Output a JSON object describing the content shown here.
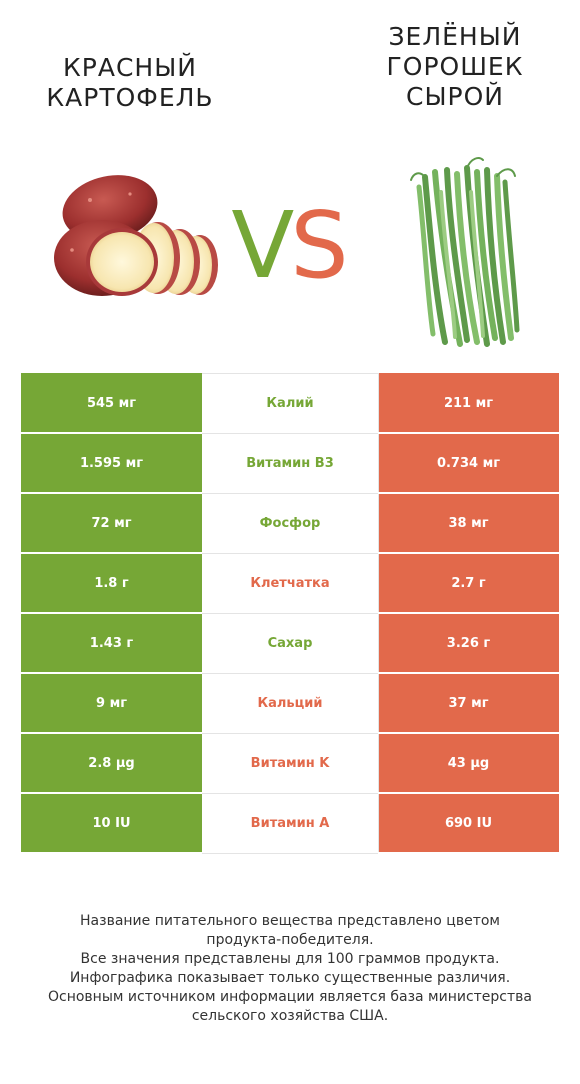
{
  "header": {
    "left_title_line1": "Красный",
    "left_title_line2": "картофель",
    "right_title_line1": "Зелёный",
    "right_title_line2": "горошек",
    "right_title_line3": "сырой",
    "vs_v": "V",
    "vs_s": "S"
  },
  "colors": {
    "left": "#76a736",
    "right": "#e2694b"
  },
  "rows": [
    {
      "left": "545 мг",
      "name": "Калий",
      "right": "211 мг",
      "winner": "left"
    },
    {
      "left": "1.595 мг",
      "name": "Витамин B3",
      "right": "0.734 мг",
      "winner": "left"
    },
    {
      "left": "72 мг",
      "name": "Фосфор",
      "right": "38 мг",
      "winner": "left"
    },
    {
      "left": "1.8 г",
      "name": "Клетчатка",
      "right": "2.7 г",
      "winner": "right"
    },
    {
      "left": "1.43 г",
      "name": "Сахар",
      "right": "3.26 г",
      "winner": "left"
    },
    {
      "left": "9 мг",
      "name": "Кальций",
      "right": "37 мг",
      "winner": "right"
    },
    {
      "left": "2.8 µg",
      "name": "Витамин K",
      "right": "43 µg",
      "winner": "right"
    },
    {
      "left": "10 IU",
      "name": "Витамин A",
      "right": "690 IU",
      "winner": "right"
    }
  ],
  "footer": {
    "line1": "Название питательного вещества представлено цветом",
    "line2": "продукта-победителя.",
    "line3": "Все значения представлены для 100 граммов продукта.",
    "line4": "Инфографика показывает только существенные различия.",
    "line5": "Основным источником информации является база министерства",
    "line6": "сельского хозяйства США."
  }
}
